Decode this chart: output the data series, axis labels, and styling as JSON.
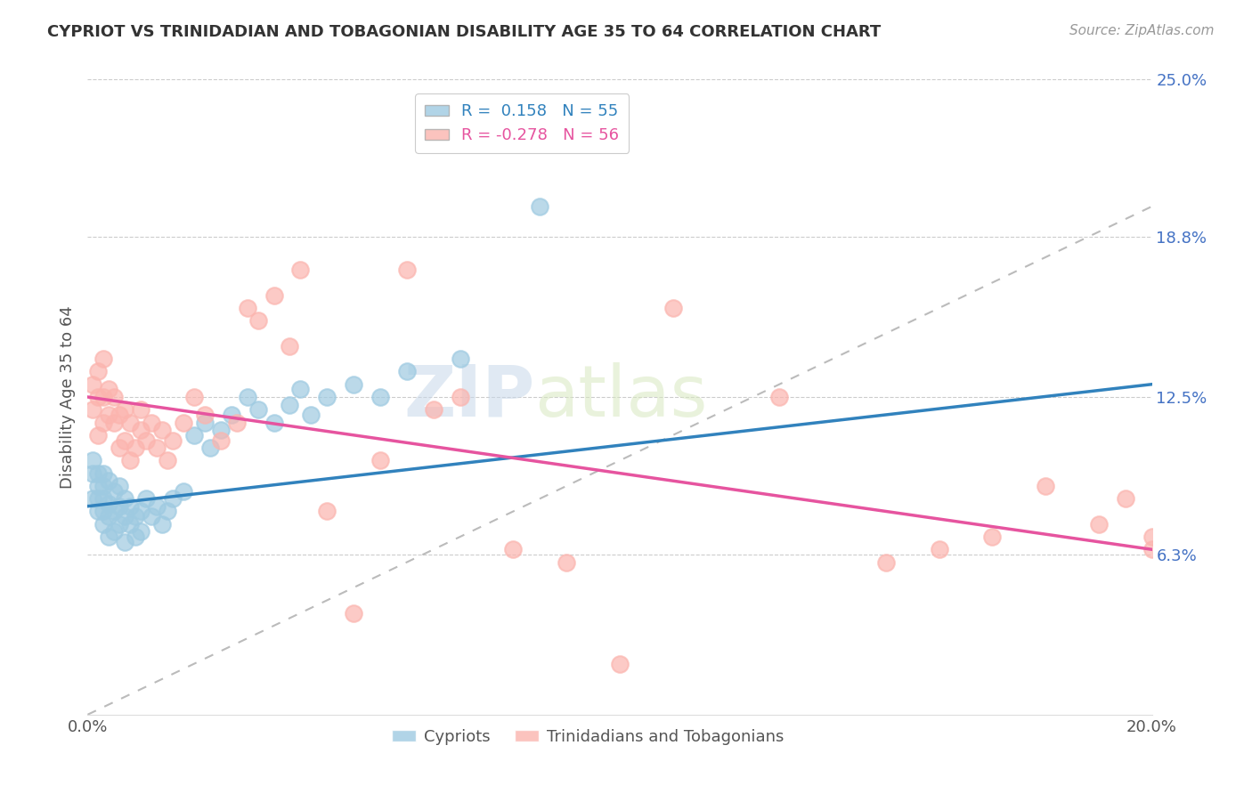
{
  "title": "CYPRIOT VS TRINIDADIAN AND TOBAGONIAN DISABILITY AGE 35 TO 64 CORRELATION CHART",
  "source": "Source: ZipAtlas.com",
  "ylabel": "Disability Age 35 to 64",
  "xlim": [
    0.0,
    0.2
  ],
  "ylim": [
    0.0,
    0.25
  ],
  "ytick_vals": [
    0.063,
    0.125,
    0.188,
    0.25
  ],
  "ytick_labels": [
    "6.3%",
    "12.5%",
    "18.8%",
    "25.0%"
  ],
  "xtick_vals": [
    0.0,
    0.2
  ],
  "xtick_labels": [
    "0.0%",
    "20.0%"
  ],
  "cypriot_color": "#9ecae1",
  "trinidadian_color": "#fbb4ae",
  "cypriot_line_color": "#3182bd",
  "trinidadian_line_color": "#e6549f",
  "diag_line_color": "#bbbbbb",
  "legend_r_cypriot": " 0.158",
  "legend_n_cypriot": "55",
  "legend_r_trini": "-0.278",
  "legend_n_trini": "56",
  "watermark_zip": "ZIP",
  "watermark_atlas": "atlas",
  "cypriot_x": [
    0.001,
    0.001,
    0.001,
    0.002,
    0.002,
    0.002,
    0.002,
    0.003,
    0.003,
    0.003,
    0.003,
    0.003,
    0.004,
    0.004,
    0.004,
    0.004,
    0.005,
    0.005,
    0.005,
    0.006,
    0.006,
    0.006,
    0.007,
    0.007,
    0.007,
    0.008,
    0.008,
    0.009,
    0.009,
    0.01,
    0.01,
    0.011,
    0.012,
    0.013,
    0.014,
    0.015,
    0.016,
    0.018,
    0.02,
    0.022,
    0.023,
    0.025,
    0.027,
    0.03,
    0.032,
    0.035,
    0.038,
    0.04,
    0.042,
    0.045,
    0.05,
    0.055,
    0.06,
    0.07,
    0.085
  ],
  "cypriot_y": [
    0.085,
    0.095,
    0.1,
    0.08,
    0.085,
    0.09,
    0.095,
    0.075,
    0.08,
    0.085,
    0.09,
    0.095,
    0.07,
    0.078,
    0.083,
    0.092,
    0.072,
    0.08,
    0.088,
    0.075,
    0.082,
    0.09,
    0.068,
    0.078,
    0.085,
    0.075,
    0.082,
    0.07,
    0.078,
    0.072,
    0.08,
    0.085,
    0.078,
    0.082,
    0.075,
    0.08,
    0.085,
    0.088,
    0.11,
    0.115,
    0.105,
    0.112,
    0.118,
    0.125,
    0.12,
    0.115,
    0.122,
    0.128,
    0.118,
    0.125,
    0.13,
    0.125,
    0.135,
    0.14,
    0.2
  ],
  "trini_x": [
    0.001,
    0.001,
    0.002,
    0.002,
    0.002,
    0.003,
    0.003,
    0.003,
    0.004,
    0.004,
    0.005,
    0.005,
    0.006,
    0.006,
    0.007,
    0.007,
    0.008,
    0.008,
    0.009,
    0.01,
    0.01,
    0.011,
    0.012,
    0.013,
    0.014,
    0.015,
    0.016,
    0.018,
    0.02,
    0.022,
    0.025,
    0.028,
    0.03,
    0.032,
    0.035,
    0.038,
    0.04,
    0.045,
    0.05,
    0.055,
    0.06,
    0.065,
    0.07,
    0.08,
    0.09,
    0.1,
    0.11,
    0.13,
    0.15,
    0.16,
    0.17,
    0.18,
    0.19,
    0.195,
    0.2,
    0.2
  ],
  "trini_y": [
    0.12,
    0.13,
    0.11,
    0.125,
    0.135,
    0.115,
    0.125,
    0.14,
    0.118,
    0.128,
    0.115,
    0.125,
    0.105,
    0.118,
    0.108,
    0.12,
    0.1,
    0.115,
    0.105,
    0.112,
    0.12,
    0.108,
    0.115,
    0.105,
    0.112,
    0.1,
    0.108,
    0.115,
    0.125,
    0.118,
    0.108,
    0.115,
    0.16,
    0.155,
    0.165,
    0.145,
    0.175,
    0.08,
    0.04,
    0.1,
    0.175,
    0.12,
    0.125,
    0.065,
    0.06,
    0.02,
    0.16,
    0.125,
    0.06,
    0.065,
    0.07,
    0.09,
    0.075,
    0.085,
    0.07,
    0.065
  ]
}
